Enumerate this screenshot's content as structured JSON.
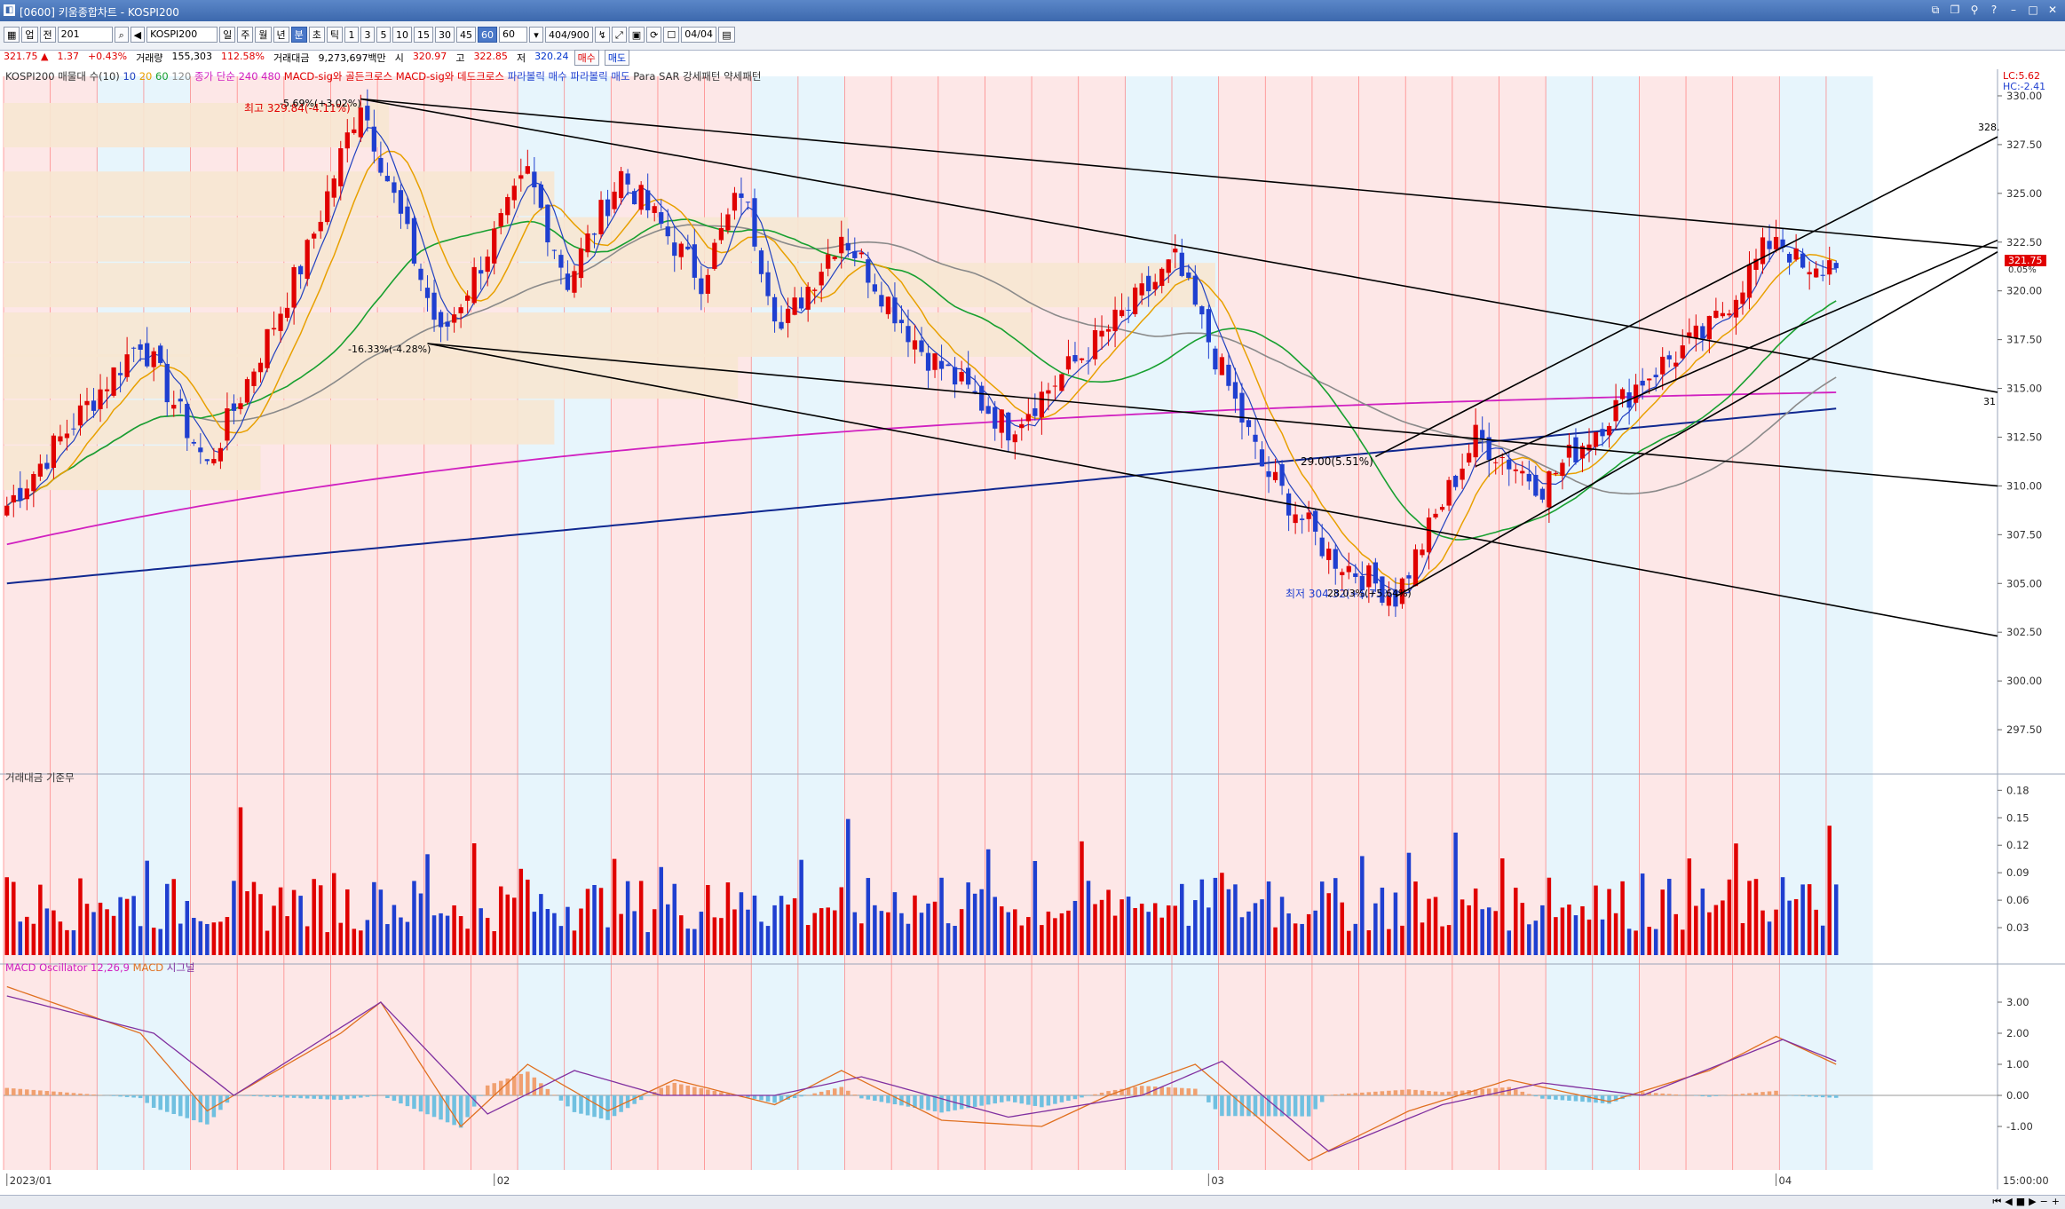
{
  "window": {
    "title": "[0600] 키움종합차트 - KOSPI200"
  },
  "toolbar": {
    "market": "업",
    "period_sel": "전",
    "code": "201",
    "name": "KOSPI200",
    "periods": [
      "일",
      "주",
      "월",
      "년",
      "분",
      "초",
      "틱"
    ],
    "active_period": "분",
    "minutes": [
      "1",
      "3",
      "5",
      "10",
      "15",
      "30",
      "45",
      "60"
    ],
    "active_minute": "60",
    "minute_value": "60",
    "count": "404",
    "count_total": "900",
    "date": "04/04"
  },
  "quote": {
    "price": "321.75",
    "arrow": "▲",
    "change": "1.37",
    "change_pct": "+0.43%",
    "volume_label": "거래량",
    "volume": "155,303",
    "volume_pct": "112.58%",
    "amount_label": "거래대금",
    "amount": "9,273,697백만",
    "open_label": "시",
    "open": "320.97",
    "high_label": "고",
    "high": "322.85",
    "low_label": "저",
    "low": "320.24",
    "buy": "매수",
    "sell": "매도"
  },
  "legend": {
    "main": "KOSPI200 매물대 수(10)",
    "ma": [
      "10",
      "20",
      "60",
      "120"
    ],
    "ma2": "종가 단순 240 480",
    "sig1": "MACD-sig와 골든크로스",
    "sig2": "MACD-sig와 데드크로스",
    "sar1": "파라볼릭 매수",
    "sar2": "파라볼릭 매도",
    "sar3": "Para SAR 강세패턴 약세패턴",
    "volume": "거래대금 기준무",
    "macd": "MACD Oscillator 12,26,9",
    "macd2": "MACD",
    "macd3": "시그널"
  },
  "annotations": {
    "high_text": "최고 329.84(-4.11%)",
    "high_pct": "-5.69%(+3.02%)",
    "mid_text": "-16.33%(-4.28%)",
    "low_text": "최저 304.32(+5.73%)",
    "low_pct": "28.03%(+5.64%)",
    "bounce_text": "29.00(5.51%)",
    "right_top": "LC:5.62",
    "right_top2": "HC:-2.41",
    "price_tag": "321.75",
    "pct_tag": "0.05%",
    "line_end_1": "328.",
    "line_end_2": "31"
  },
  "colors": {
    "up": "#e00000",
    "down": "#1f3fd0",
    "ma10": "#2040c0",
    "ma20": "#e8a000",
    "ma60": "#18a030",
    "ma120": "#8a8a8a",
    "ma240": "#d020c0",
    "ma480": "#102890",
    "macd": "#e07020",
    "signal": "#8030a0",
    "osc_pos": "#f0a070",
    "osc_neg": "#70c0e0",
    "band_red": "#fde3e3",
    "band_blue": "#e3f3fb",
    "volume_profile": "#f7e7d2"
  },
  "chart_data": [
    {
      "type": "candlestick",
      "title": "KOSPI200",
      "xlabel": "",
      "ylabel": "",
      "ylim": [
        295.5,
        331
      ],
      "y_ticks": [
        297.5,
        300,
        302.5,
        305,
        307.5,
        310,
        312.5,
        315,
        317.5,
        320,
        322.5,
        325,
        327.5,
        330
      ],
      "x_labels": [
        "2023/01",
        "02",
        "03",
        "04"
      ],
      "x_time_label": "15:00:00",
      "bar_count": 275,
      "key_points": [
        {
          "bar": 0,
          "close": 309.0
        },
        {
          "bar": 20,
          "close": 317.5
        },
        {
          "bar": 30,
          "close": 311.0
        },
        {
          "bar": 45,
          "close": 322.0
        },
        {
          "bar": 53,
          "close": 329.84
        },
        {
          "bar": 65,
          "close": 317.6
        },
        {
          "bar": 78,
          "close": 326.0
        },
        {
          "bar": 84,
          "close": 320.5
        },
        {
          "bar": 92,
          "close": 326.0
        },
        {
          "bar": 104,
          "close": 320.6
        },
        {
          "bar": 110,
          "close": 325.2
        },
        {
          "bar": 116,
          "close": 318.0
        },
        {
          "bar": 125,
          "close": 323.0
        },
        {
          "bar": 137,
          "close": 317.0
        },
        {
          "bar": 150,
          "close": 313.0
        },
        {
          "bar": 162,
          "close": 317.0
        },
        {
          "bar": 175,
          "close": 321.5
        },
        {
          "bar": 188,
          "close": 311.0
        },
        {
          "bar": 198,
          "close": 306.5
        },
        {
          "bar": 208,
          "close": 304.32
        },
        {
          "bar": 220,
          "close": 312.5
        },
        {
          "bar": 230,
          "close": 310.0
        },
        {
          "bar": 245,
          "close": 315.5
        },
        {
          "bar": 255,
          "close": 318.0
        },
        {
          "bar": 265,
          "close": 323.0
        },
        {
          "bar": 270,
          "close": 320.5
        },
        {
          "bar": 274,
          "close": 321.75
        }
      ]
    },
    {
      "type": "bar",
      "title": "거래대금",
      "ylim": [
        0,
        0.19
      ],
      "y_ticks": [
        0.03,
        0.06,
        0.09,
        0.12,
        0.15,
        0.18
      ]
    },
    {
      "type": "line",
      "title": "MACD Oscillator 12,26,9",
      "ylim": [
        -2.4,
        4.0
      ],
      "y_ticks": [
        -1.0,
        0.0,
        1.0,
        2.0,
        3.0
      ],
      "key_points_macd": [
        {
          "bar": 0,
          "value": 3.5
        },
        {
          "bar": 20,
          "value": 2.0
        },
        {
          "bar": 30,
          "value": -0.5
        },
        {
          "bar": 50,
          "value": 2.0
        },
        {
          "bar": 56,
          "value": 3.0
        },
        {
          "bar": 68,
          "value": -1.0
        },
        {
          "bar": 78,
          "value": 1.0
        },
        {
          "bar": 90,
          "value": -0.5
        },
        {
          "bar": 100,
          "value": 0.5
        },
        {
          "bar": 115,
          "value": -0.3
        },
        {
          "bar": 125,
          "value": 0.8
        },
        {
          "bar": 140,
          "value": -0.8
        },
        {
          "bar": 155,
          "value": -1.0
        },
        {
          "bar": 165,
          "value": 0.0
        },
        {
          "bar": 178,
          "value": 1.0
        },
        {
          "bar": 195,
          "value": -2.1
        },
        {
          "bar": 210,
          "value": -0.5
        },
        {
          "bar": 225,
          "value": 0.5
        },
        {
          "bar": 240,
          "value": -0.2
        },
        {
          "bar": 255,
          "value": 0.8
        },
        {
          "bar": 265,
          "value": 1.9
        },
        {
          "bar": 274,
          "value": 1.0
        }
      ],
      "key_points_signal": [
        {
          "bar": 0,
          "value": 3.2
        },
        {
          "bar": 22,
          "value": 2.0
        },
        {
          "bar": 34,
          "value": 0.0
        },
        {
          "bar": 56,
          "value": 3.0
        },
        {
          "bar": 72,
          "value": -0.6
        },
        {
          "bar": 85,
          "value": 0.8
        },
        {
          "bar": 98,
          "value": 0.0
        },
        {
          "bar": 115,
          "value": 0.0
        },
        {
          "bar": 128,
          "value": 0.6
        },
        {
          "bar": 150,
          "value": -0.7
        },
        {
          "bar": 170,
          "value": 0.0
        },
        {
          "bar": 182,
          "value": 1.1
        },
        {
          "bar": 198,
          "value": -1.8
        },
        {
          "bar": 215,
          "value": -0.3
        },
        {
          "bar": 230,
          "value": 0.4
        },
        {
          "bar": 245,
          "value": 0.0
        },
        {
          "bar": 266,
          "value": 1.8
        },
        {
          "bar": 274,
          "value": 1.1
        }
      ]
    }
  ]
}
